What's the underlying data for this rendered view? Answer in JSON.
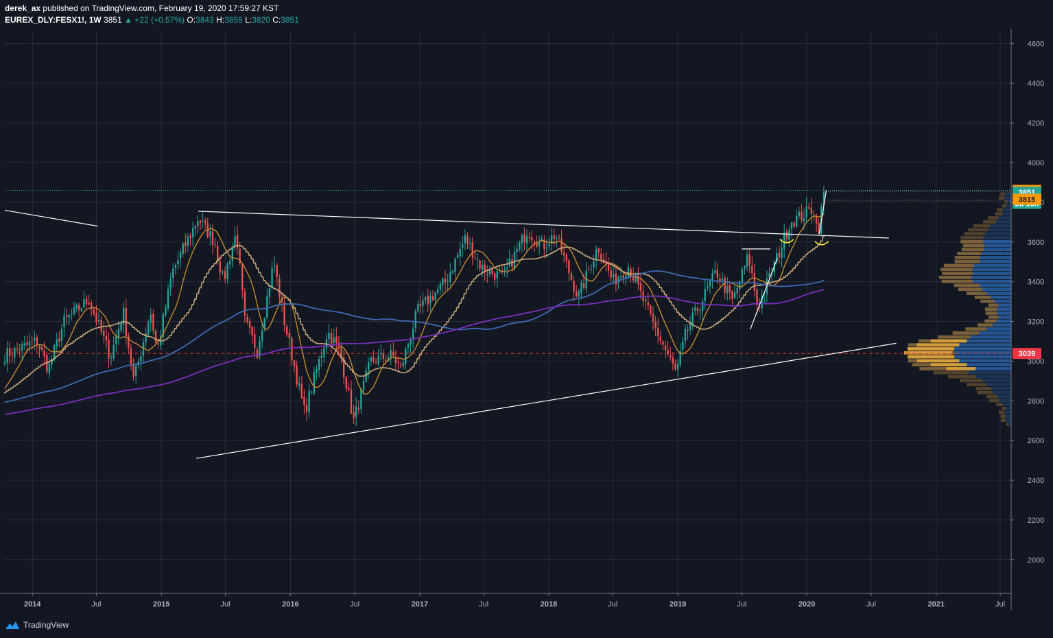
{
  "header": {
    "author": "derek_ax",
    "published_text": "published on TradingView.com, February 19, 2020 17:59:27 KST",
    "symbol": "EUREX_DLY:FESX1!, 1W",
    "last_price": "3851",
    "change": "▲ +22 (+0.57%)",
    "open_label": "O:",
    "open": "3843",
    "high_label": "H:",
    "high": "3855",
    "low_label": "L:",
    "low": "3820",
    "close_label": "C:",
    "close": "3851"
  },
  "footer": {
    "brand": "TradingView",
    "logo_icon": "tradingview-cloud-icon"
  },
  "colors": {
    "background": "#131722",
    "grid": "#2a2e39",
    "up": "#26a69a",
    "down": "#ef5350",
    "ma_fast": "#c98a2e",
    "ma_step": "#c4a67a",
    "ma_slow_blue": "#3d6bb3",
    "ma_slow_purple": "#7b2fbe",
    "trendline": "#ffffff",
    "support_dashed": "#e53935",
    "resistance_dotted": "#26a69a"
  },
  "chart_data": {
    "type": "candlestick",
    "timeframe": "1W",
    "x_range": [
      "2013-10-15",
      "2021-08-01"
    ],
    "x_ticks": [
      {
        "label": "2014",
        "date": "2014-01-01"
      },
      {
        "label": "Jul",
        "date": "2014-07-01"
      },
      {
        "label": "2015",
        "date": "2015-01-01"
      },
      {
        "label": "Jul",
        "date": "2015-07-01"
      },
      {
        "label": "2016",
        "date": "2016-01-01"
      },
      {
        "label": "Jul",
        "date": "2016-07-01"
      },
      {
        "label": "2017",
        "date": "2017-01-01"
      },
      {
        "label": "Jul",
        "date": "2017-07-01"
      },
      {
        "label": "2018",
        "date": "2018-01-01"
      },
      {
        "label": "Jul",
        "date": "2018-07-01"
      },
      {
        "label": "2019",
        "date": "2019-01-01"
      },
      {
        "label": "Jul",
        "date": "2019-07-01"
      },
      {
        "label": "2020",
        "date": "2020-01-01"
      },
      {
        "label": "Jul",
        "date": "2020-07-01"
      },
      {
        "label": "2021",
        "date": "2021-01-01"
      },
      {
        "label": "Jul",
        "date": "2021-07-01"
      }
    ],
    "y_range": [
      1830,
      4660
    ],
    "y_ticks": [
      2000,
      2200,
      2400,
      2600,
      2800,
      3000,
      3200,
      3400,
      3600,
      3800,
      4000,
      4200,
      4400,
      4600
    ],
    "price_anchors": [
      [
        "2013-10-15",
        3030
      ],
      [
        "2014-01-15",
        3100
      ],
      [
        "2014-02-15",
        2960
      ],
      [
        "2014-04-01",
        3200
      ],
      [
        "2014-06-10",
        3310
      ],
      [
        "2014-08-10",
        3020
      ],
      [
        "2014-09-15",
        3250
      ],
      [
        "2014-10-15",
        2900
      ],
      [
        "2014-12-01",
        3250
      ],
      [
        "2014-12-20",
        3050
      ],
      [
        "2015-02-01",
        3450
      ],
      [
        "2015-04-15",
        3720
      ],
      [
        "2015-06-01",
        3600
      ],
      [
        "2015-06-25",
        3400
      ],
      [
        "2015-08-01",
        3650
      ],
      [
        "2015-08-25",
        3200
      ],
      [
        "2015-09-29",
        3050
      ],
      [
        "2015-11-15",
        3500
      ],
      [
        "2015-12-15",
        3200
      ],
      [
        "2016-02-10",
        2740
      ],
      [
        "2016-04-15",
        3150
      ],
      [
        "2016-05-20",
        3050
      ],
      [
        "2016-06-28",
        2700
      ],
      [
        "2016-08-15",
        3000
      ],
      [
        "2016-10-15",
        3030
      ],
      [
        "2016-11-08",
        2960
      ],
      [
        "2016-12-25",
        3250
      ],
      [
        "2017-03-15",
        3400
      ],
      [
        "2017-05-10",
        3620
      ],
      [
        "2017-06-25",
        3470
      ],
      [
        "2017-08-25",
        3420
      ],
      [
        "2017-11-01",
        3660
      ],
      [
        "2017-12-15",
        3580
      ],
      [
        "2018-01-20",
        3640
      ],
      [
        "2018-03-25",
        3320
      ],
      [
        "2018-05-20",
        3580
      ],
      [
        "2018-07-01",
        3400
      ],
      [
        "2018-08-15",
        3480
      ],
      [
        "2018-10-25",
        3180
      ],
      [
        "2018-12-28",
        2940
      ],
      [
        "2019-01-25",
        3150
      ],
      [
        "2019-04-20",
        3450
      ],
      [
        "2019-06-05",
        3300
      ],
      [
        "2019-07-20",
        3530
      ],
      [
        "2019-08-15",
        3270
      ],
      [
        "2019-10-15",
        3550
      ],
      [
        "2019-11-15",
        3700
      ],
      [
        "2019-12-15",
        3730
      ],
      [
        "2020-01-20",
        3770
      ],
      [
        "2020-02-01",
        3640
      ],
      [
        "2020-02-19",
        3851
      ]
    ],
    "moving_averages": [
      {
        "id": "ma-fast",
        "period_weeks": 10,
        "color": "#c98a2e",
        "width": 1.4
      },
      {
        "id": "ma-step",
        "period_weeks": 26,
        "color": "#c4a67a",
        "width": 1.6
      },
      {
        "id": "ma-slow-blue",
        "period_weeks": 100,
        "color": "#3d6bb3",
        "width": 1.8
      },
      {
        "id": "ma-slow-purple",
        "period_weeks": 200,
        "color": "#7b2fbe",
        "width": 1.8
      }
    ],
    "trendlines": [
      {
        "id": "old-downtrend",
        "from": [
          "2013-10-15",
          3760
        ],
        "to": [
          "2014-07-05",
          3680
        ]
      },
      {
        "id": "resistance-line",
        "from": [
          "2015-04-15",
          3755
        ],
        "to": [
          "2020-08-20",
          3620
        ]
      },
      {
        "id": "support-line",
        "from": [
          "2015-04-10",
          2510
        ],
        "to": [
          "2020-09-10",
          3090
        ]
      },
      {
        "id": "steep-uptrend",
        "from": [
          "2019-07-25",
          3160
        ],
        "to": [
          "2019-10-10",
          3520
        ]
      },
      {
        "id": "breakout-horizontal",
        "from": [
          "2019-07-01",
          3565
        ],
        "to": [
          "2019-09-20",
          3565
        ]
      },
      {
        "id": "recent-spike",
        "from": [
          "2020-02-05",
          3640
        ],
        "to": [
          "2020-02-25",
          3860
        ]
      }
    ],
    "horizontal_levels": [
      {
        "id": "level-3860",
        "value": 3860,
        "style": "dotted",
        "color": "#26a69a"
      },
      {
        "id": "level-3039",
        "value": 3039,
        "style": "dashed",
        "color": "#e53935"
      }
    ],
    "price_labels": [
      {
        "value": 3860,
        "text": "3860",
        "bg": "#ff9800",
        "fg": "#131722"
      },
      {
        "value": 3851,
        "text": "3851",
        "bg": "#26a69a",
        "fg": "#ffffff"
      },
      {
        "value": 3795,
        "text": "2d 13h",
        "bg": "#26a69a",
        "fg": "#ffffff"
      },
      {
        "value": 3815,
        "text": "3815",
        "bg": "#ff9800",
        "fg": "#131722"
      },
      {
        "value": 3039,
        "text": "3039",
        "bg": "#f23645",
        "fg": "#ffffff"
      }
    ],
    "volume_profile": {
      "row_step": 20,
      "value_area": [
        2960,
        3600
      ],
      "peaks": [
        {
          "price": 3040,
          "size": 1.0
        },
        {
          "price": 3430,
          "size": 0.55
        },
        {
          "price": 3620,
          "size": 0.35
        },
        {
          "price": 2900,
          "size": 0.25
        }
      ],
      "range": [
        2680,
        3840
      ]
    }
  }
}
